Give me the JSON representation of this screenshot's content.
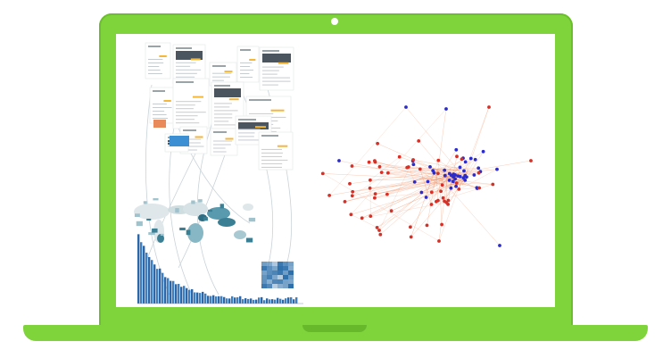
{
  "device": {
    "type": "laptop",
    "frame_color": "#7ed43a",
    "frame_shade": "#68b82b",
    "screen_color": "#ffffff"
  },
  "left_panel": {
    "cards": 14,
    "card_accent": "#f5b73a",
    "map_color_dark": "#3b7f95",
    "map_color_light": "#dfe7ea",
    "bar_color": "#3f7fc0"
  },
  "network": {
    "nodes_red": 55,
    "nodes_blue": 45,
    "red": "#d73027",
    "blue": "#2c2cc8",
    "edge": "#f08a5d"
  }
}
